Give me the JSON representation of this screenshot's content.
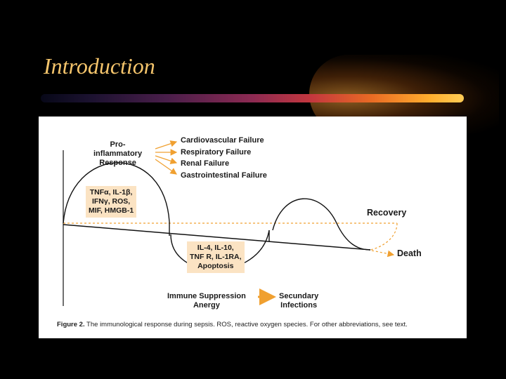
{
  "slide": {
    "title": "Introduction"
  },
  "figure": {
    "pro_inflammatory": [
      "Pro-",
      "inflammatory",
      "Response"
    ],
    "failures": [
      "Cardiovascular Failure",
      "Respiratory Failure",
      "Renal Failure",
      "Gastrointestinal Failure"
    ],
    "pro_mediators": [
      "TNFα, IL-1β,",
      "IFNγ, ROS,",
      "MIF, HMGB-1"
    ],
    "anti_mediators": [
      "IL-4, IL-10,",
      "TNF R, IL-1RA,",
      "Apoptosis"
    ],
    "immune_suppression": [
      "Immune Suppression",
      "Anergy"
    ],
    "secondary_infections": [
      "Secundary",
      "Infections"
    ],
    "recovery": "Recovery",
    "death": "Death",
    "caption_label": "Figure 2.",
    "caption_text": " The immunological response during sepsis. ROS, reactive oxygen species. For other abbreviations, see text.",
    "colors": {
      "arrow": "#f0a030",
      "box": "#fbe3c3",
      "baseline": "#f0a030"
    }
  }
}
